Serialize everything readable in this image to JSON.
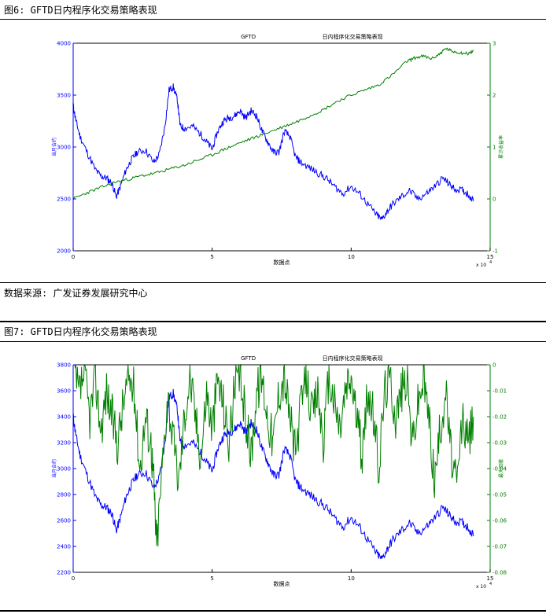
{
  "fig6": {
    "caption": "图6: GFTD日内程序化交易策略表现",
    "source": "数据来源: 广发证券发展研究中心"
  },
  "fig7": {
    "caption": "图7: GFTD日内程序化交易策略表现"
  },
  "chart_data": [
    {
      "type": "line",
      "title_left": "GFTD",
      "title_right": "日内程序化交易策略表现",
      "xlabel": "数据点",
      "x_exponent": "x 10",
      "x_exponent_power": "4",
      "xlim": [
        0,
        15
      ],
      "x_ticks": [
        "0",
        "5",
        "10",
        "15"
      ],
      "ylabel_left": "当月合约",
      "ylim_left": [
        2000,
        4000
      ],
      "y_ticks_left": [
        "2000",
        "2500",
        "3000",
        "3500",
        "4000"
      ],
      "ylabel_right": "累计收益率",
      "ylim_right": [
        -1,
        3
      ],
      "y_ticks_right": [
        "-1",
        "0",
        "1",
        "2",
        "3"
      ],
      "colors": {
        "price": "#0000ff",
        "equity": "#008000"
      },
      "series": [
        {
          "axis": "left",
          "color": "#0000ff",
          "x": [
            0,
            0.1,
            0.25,
            0.5,
            0.8,
            1.0,
            1.2,
            1.4,
            1.55,
            1.7,
            1.9,
            2.1,
            2.3,
            2.6,
            2.9,
            3.1,
            3.3,
            3.45,
            3.6,
            3.75,
            3.85,
            4.0,
            4.3,
            4.6,
            4.8,
            5.0,
            5.2,
            5.4,
            5.6,
            5.8,
            6.0,
            6.2,
            6.4,
            6.6,
            6.8,
            7.0,
            7.2,
            7.4,
            7.6,
            7.8,
            8.0,
            8.2,
            8.5,
            8.8,
            9.1,
            9.4,
            9.7,
            10.0,
            10.3,
            10.6,
            10.9,
            11.1,
            11.3,
            11.5,
            11.8,
            12.1,
            12.4,
            12.7,
            13.0,
            13.3,
            13.5,
            13.7,
            14.0,
            14.2,
            14.4
          ],
          "y": [
            3400,
            3250,
            3100,
            2950,
            2780,
            2720,
            2700,
            2650,
            2520,
            2620,
            2780,
            2880,
            2950,
            2970,
            2850,
            2930,
            3200,
            3550,
            3580,
            3450,
            3200,
            3180,
            3200,
            3120,
            3050,
            2980,
            3150,
            3250,
            3280,
            3300,
            3350,
            3280,
            3350,
            3300,
            3150,
            3050,
            2950,
            2950,
            3150,
            3100,
            2900,
            2850,
            2800,
            2750,
            2700,
            2620,
            2550,
            2620,
            2550,
            2450,
            2350,
            2300,
            2380,
            2450,
            2520,
            2580,
            2500,
            2550,
            2620,
            2700,
            2650,
            2600,
            2580,
            2550,
            2480
          ]
        },
        {
          "axis": "right",
          "color": "#008000",
          "x": [
            0,
            0.5,
            1,
            1.5,
            2,
            2.5,
            3,
            3.5,
            4,
            4.5,
            5,
            5.5,
            6,
            6.5,
            7,
            7.5,
            8,
            8.5,
            9,
            9.5,
            10,
            10.5,
            11,
            11.5,
            12,
            12.3,
            12.6,
            12.9,
            13.2,
            13.4,
            13.6,
            13.9,
            14.2,
            14.4
          ],
          "y": [
            0.0,
            0.12,
            0.22,
            0.32,
            0.38,
            0.45,
            0.5,
            0.58,
            0.65,
            0.75,
            0.85,
            0.97,
            1.08,
            1.18,
            1.28,
            1.38,
            1.48,
            1.6,
            1.72,
            1.88,
            2.0,
            2.1,
            2.2,
            2.4,
            2.65,
            2.72,
            2.75,
            2.7,
            2.8,
            2.9,
            2.85,
            2.82,
            2.8,
            2.85
          ]
        }
      ]
    },
    {
      "type": "line",
      "title_left": "GFTD",
      "title_right": "日内程序化交易策略表现",
      "xlabel": "数据点",
      "x_exponent": "x 10",
      "x_exponent_power": "4",
      "xlim": [
        0,
        15
      ],
      "x_ticks": [
        "0",
        "5",
        "10",
        "15"
      ],
      "ylabel_left": "当月合约",
      "ylim_left": [
        2200,
        3800
      ],
      "y_ticks_left": [
        "2200",
        "2400",
        "2600",
        "2800",
        "3000",
        "3200",
        "3400",
        "3600",
        "3800"
      ],
      "ylabel_right": "最大回撤",
      "ylim_right": [
        -0.08,
        0
      ],
      "y_ticks_right": [
        "-0.08",
        "-0.07",
        "-0.06",
        "-0.05",
        "-0.04",
        "-0.03",
        "-0.02",
        "-0.01",
        "0"
      ],
      "colors": {
        "price": "#0000ff",
        "drawdown": "#008000"
      },
      "series": [
        {
          "axis": "left",
          "color": "#0000ff",
          "x": [
            0,
            0.1,
            0.25,
            0.5,
            0.8,
            1.0,
            1.2,
            1.4,
            1.55,
            1.7,
            1.9,
            2.1,
            2.3,
            2.6,
            2.9,
            3.1,
            3.3,
            3.45,
            3.6,
            3.75,
            3.85,
            4.0,
            4.3,
            4.6,
            4.8,
            5.0,
            5.2,
            5.4,
            5.6,
            5.8,
            6.0,
            6.2,
            6.4,
            6.6,
            6.8,
            7.0,
            7.2,
            7.4,
            7.6,
            7.8,
            8.0,
            8.2,
            8.5,
            8.8,
            9.1,
            9.4,
            9.7,
            10.0,
            10.3,
            10.6,
            10.9,
            11.1,
            11.3,
            11.5,
            11.8,
            12.1,
            12.4,
            12.7,
            13.0,
            13.3,
            13.5,
            13.7,
            14.0,
            14.2,
            14.4
          ],
          "y": [
            3400,
            3250,
            3100,
            2950,
            2780,
            2720,
            2700,
            2650,
            2520,
            2620,
            2780,
            2880,
            2950,
            2970,
            2850,
            2930,
            3200,
            3550,
            3580,
            3450,
            3200,
            3180,
            3200,
            3120,
            3050,
            2980,
            3150,
            3250,
            3280,
            3300,
            3350,
            3280,
            3350,
            3300,
            3150,
            3050,
            2950,
            2950,
            3150,
            3100,
            2900,
            2850,
            2800,
            2750,
            2700,
            2620,
            2550,
            2620,
            2550,
            2450,
            2350,
            2300,
            2380,
            2450,
            2520,
            2580,
            2500,
            2550,
            2620,
            2700,
            2650,
            2600,
            2580,
            2550,
            2480
          ]
        },
        {
          "axis": "right",
          "color": "#008000",
          "x": [
            0,
            0.2,
            0.4,
            0.6,
            0.8,
            1.0,
            1.2,
            1.4,
            1.6,
            1.8,
            2.0,
            2.2,
            2.4,
            2.6,
            2.8,
            2.9,
            3.0,
            3.2,
            3.4,
            3.6,
            3.8,
            4.0,
            4.2,
            4.4,
            4.6,
            4.8,
            5.0,
            5.2,
            5.4,
            5.6,
            5.8,
            6.0,
            6.2,
            6.4,
            6.6,
            6.8,
            7.0,
            7.2,
            7.4,
            7.6,
            7.8,
            8.0,
            8.2,
            8.4,
            8.6,
            8.8,
            9.0,
            9.2,
            9.4,
            9.6,
            9.8,
            10.0,
            10.2,
            10.4,
            10.6,
            10.8,
            11.0,
            11.2,
            11.4,
            11.6,
            11.8,
            12.0,
            12.2,
            12.4,
            12.6,
            12.8,
            13.0,
            13.2,
            13.4,
            13.6,
            13.8,
            14.0,
            14.2,
            14.4
          ],
          "y": [
            0,
            -0.012,
            -0.003,
            -0.02,
            -0.005,
            -0.025,
            -0.01,
            -0.02,
            -0.03,
            -0.015,
            -0.005,
            -0.01,
            -0.04,
            -0.02,
            -0.03,
            -0.045,
            -0.07,
            -0.04,
            -0.01,
            -0.03,
            -0.045,
            -0.02,
            -0.005,
            -0.02,
            -0.035,
            -0.01,
            -0.025,
            -0.005,
            -0.015,
            -0.03,
            -0.01,
            -0.005,
            -0.02,
            -0.035,
            -0.01,
            -0.005,
            -0.02,
            -0.03,
            -0.01,
            -0.005,
            -0.02,
            -0.035,
            -0.015,
            -0.005,
            -0.02,
            -0.01,
            -0.03,
            -0.005,
            -0.015,
            -0.025,
            -0.01,
            -0.005,
            -0.02,
            -0.035,
            -0.01,
            -0.02,
            -0.04,
            -0.01,
            -0.005,
            -0.02,
            -0.01,
            -0.005,
            -0.03,
            -0.015,
            -0.005,
            -0.02,
            -0.045,
            -0.025,
            -0.01,
            -0.035,
            -0.048,
            -0.02,
            -0.03,
            -0.02
          ]
        }
      ]
    }
  ]
}
